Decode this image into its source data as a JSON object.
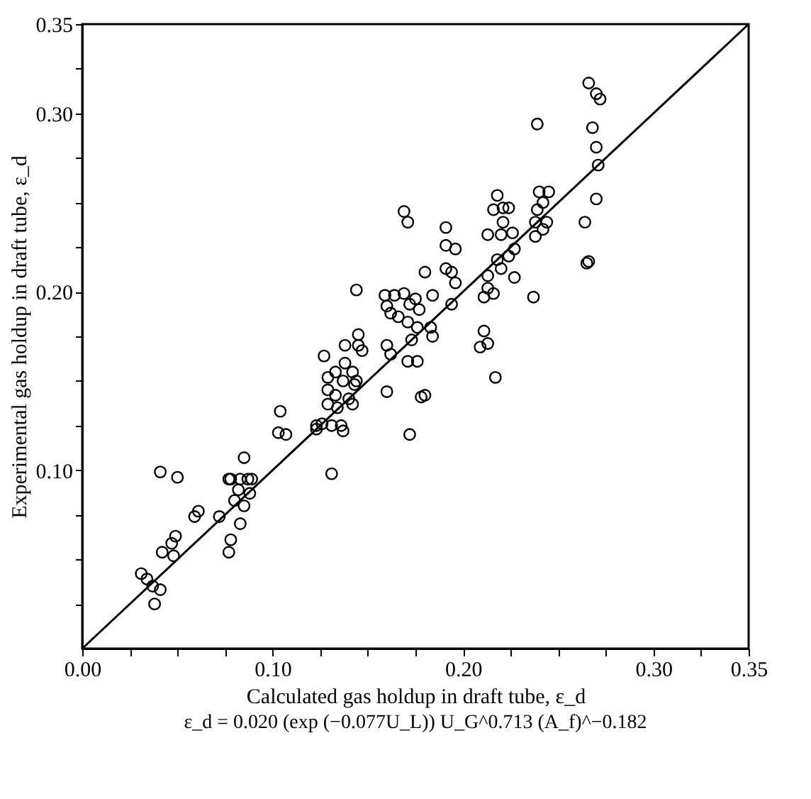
{
  "chart_data": {
    "type": "scatter",
    "xlabel": "Calculated gas holdup in draft tube, ε_d",
    "ylabel": "Experimental gas holdup in draft tube, ε_d",
    "annotations": [
      "ε_d = 0.020 (exp (−0.077U_L)) U_G^0.713 (A_f)^−0.182"
    ],
    "xlim": [
      0,
      0.35
    ],
    "ylim": [
      0,
      0.35
    ],
    "xticks": [
      {
        "value": 0,
        "label": "0.00"
      },
      {
        "value": 0.025,
        "label": null
      },
      {
        "value": 0.05,
        "label": null
      },
      {
        "value": 0.075,
        "label": null
      },
      {
        "value": 0.1,
        "label": "0.10"
      },
      {
        "value": 0.125,
        "label": null
      },
      {
        "value": 0.15,
        "label": null
      },
      {
        "value": 0.175,
        "label": null
      },
      {
        "value": 0.2,
        "label": "0.20"
      },
      {
        "value": 0.225,
        "label": null
      },
      {
        "value": 0.25,
        "label": null
      },
      {
        "value": 0.275,
        "label": null
      },
      {
        "value": 0.3,
        "label": "0.30"
      },
      {
        "value": 0.325,
        "label": null
      },
      {
        "value": 0.35,
        "label": "0.35"
      }
    ],
    "yticks": [
      {
        "value": 0.025,
        "label": null
      },
      {
        "value": 0.05,
        "label": null
      },
      {
        "value": 0.075,
        "label": null
      },
      {
        "value": 0.1,
        "label": "0.10"
      },
      {
        "value": 0.125,
        "label": null
      },
      {
        "value": 0.15,
        "label": null
      },
      {
        "value": 0.175,
        "label": null
      },
      {
        "value": 0.2,
        "label": "0.20"
      },
      {
        "value": 0.225,
        "label": null
      },
      {
        "value": 0.25,
        "label": null
      },
      {
        "value": 0.275,
        "label": null
      },
      {
        "value": 0.3,
        "label": "0.30"
      },
      {
        "value": 0.325,
        "label": null
      },
      {
        "value": 0.35,
        "label": "0.35"
      }
    ],
    "grid": false,
    "series": [
      {
        "type": "scatter",
        "marker": "circle",
        "color": "#000000",
        "x": [
          0.041,
          0.05,
          0.031,
          0.034,
          0.037,
          0.041,
          0.038,
          0.042,
          0.047,
          0.049,
          0.048,
          0.059,
          0.061,
          0.072,
          0.077,
          0.078,
          0.078,
          0.08,
          0.082,
          0.085,
          0.087,
          0.085,
          0.083,
          0.088,
          0.104,
          0.103,
          0.107,
          0.123,
          0.169,
          0.171,
          0.144,
          0.131,
          0.172,
          0.16,
          0.178,
          0.127,
          0.129,
          0.129,
          0.126,
          0.131,
          0.136,
          0.137,
          0.134,
          0.133,
          0.137,
          0.138,
          0.142,
          0.143,
          0.14,
          0.144,
          0.145,
          0.145,
          0.147,
          0.138,
          0.133,
          0.142,
          0.129,
          0.123,
          0.16,
          0.162,
          0.159,
          0.16,
          0.164,
          0.162,
          0.166,
          0.169,
          0.172,
          0.175,
          0.177,
          0.171,
          0.176,
          0.173,
          0.171,
          0.176,
          0.18,
          0.077,
          0.083,
          0.089,
          0.191,
          0.191,
          0.196,
          0.191,
          0.194,
          0.196,
          0.194,
          0.184,
          0.183,
          0.184,
          0.18,
          0.218,
          0.216,
          0.221,
          0.224,
          0.221,
          0.213,
          0.22,
          0.226,
          0.227,
          0.224,
          0.218,
          0.22,
          0.213,
          0.227,
          0.213,
          0.216,
          0.211,
          0.211,
          0.213,
          0.209,
          0.217,
          0.237,
          0.24,
          0.245,
          0.239,
          0.242,
          0.238,
          0.244,
          0.238,
          0.242,
          0.264,
          0.27,
          0.266,
          0.266,
          0.27,
          0.272,
          0.268,
          0.27,
          0.271,
          0.265,
          0.239
        ],
        "values": [
          0.099,
          0.096,
          0.042,
          0.039,
          0.035,
          0.033,
          0.025,
          0.054,
          0.059,
          0.063,
          0.052,
          0.074,
          0.077,
          0.074,
          0.054,
          0.061,
          0.095,
          0.083,
          0.089,
          0.08,
          0.095,
          0.107,
          0.07,
          0.087,
          0.133,
          0.121,
          0.12,
          0.123,
          0.245,
          0.239,
          0.201,
          0.098,
          0.12,
          0.144,
          0.141,
          0.164,
          0.152,
          0.145,
          0.126,
          0.125,
          0.125,
          0.122,
          0.135,
          0.142,
          0.15,
          0.16,
          0.155,
          0.148,
          0.14,
          0.15,
          0.17,
          0.176,
          0.167,
          0.17,
          0.155,
          0.137,
          0.137,
          0.125,
          0.17,
          0.165,
          0.198,
          0.192,
          0.198,
          0.188,
          0.186,
          0.199,
          0.193,
          0.196,
          0.19,
          0.183,
          0.18,
          0.173,
          0.161,
          0.161,
          0.211,
          0.095,
          0.095,
          0.095,
          0.236,
          0.226,
          0.224,
          0.213,
          0.211,
          0.205,
          0.193,
          0.198,
          0.18,
          0.175,
          0.142,
          0.254,
          0.246,
          0.247,
          0.247,
          0.239,
          0.232,
          0.232,
          0.233,
          0.224,
          0.22,
          0.218,
          0.213,
          0.209,
          0.208,
          0.202,
          0.199,
          0.197,
          0.178,
          0.171,
          0.169,
          0.152,
          0.197,
          0.256,
          0.256,
          0.246,
          0.25,
          0.239,
          0.239,
          0.231,
          0.235,
          0.239,
          0.252,
          0.217,
          0.317,
          0.311,
          0.308,
          0.292,
          0.281,
          0.271,
          0.216,
          0.294
        ]
      },
      {
        "type": "line",
        "line_style": "solid",
        "color": "#000000",
        "x": [
          0,
          0.35
        ],
        "values": [
          0,
          0.35
        ]
      }
    ]
  }
}
